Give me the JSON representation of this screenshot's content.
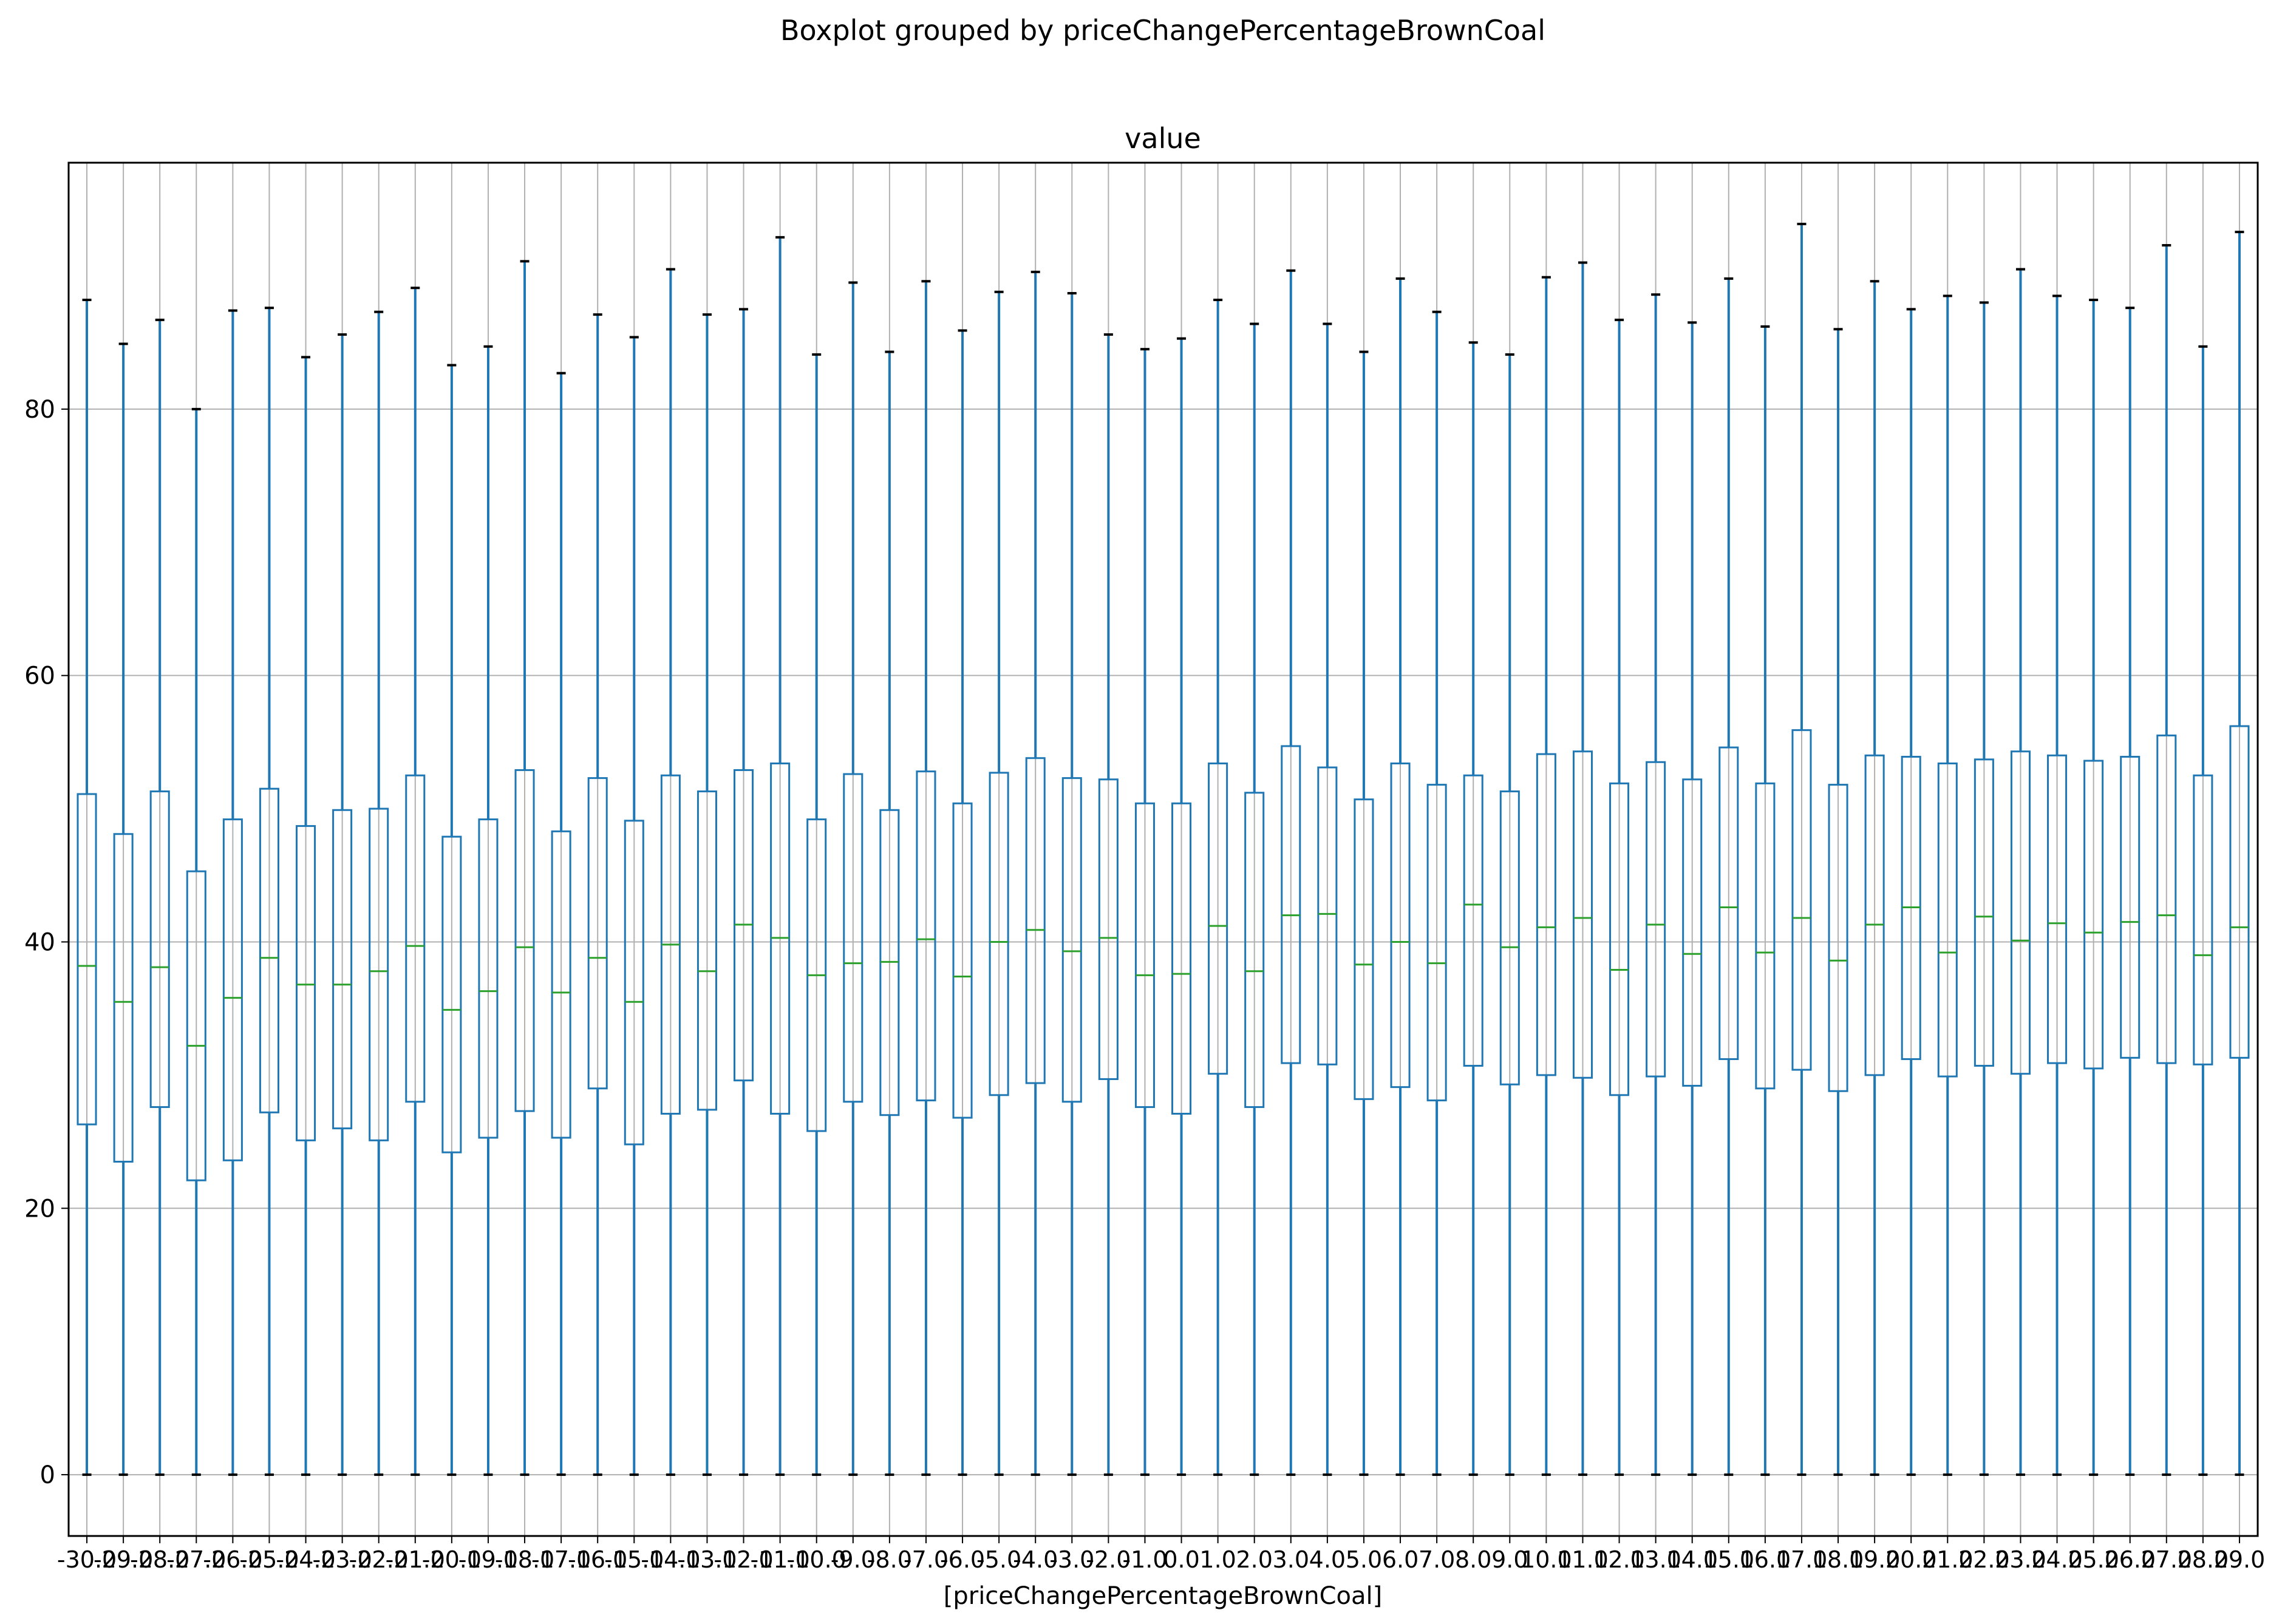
{
  "chart_data": {
    "type": "boxplot",
    "suptitle": "Boxplot grouped by priceChangePercentageBrownCoal",
    "title": "value",
    "xlabel": "[priceChangePercentageBrownCoal]",
    "ylabel": "",
    "ylim": [
      -4.6,
      98.5
    ],
    "yticks": [
      0,
      20,
      40,
      60,
      80
    ],
    "grid": true,
    "colors": {
      "box": "#1f77b4",
      "median": "#2ca02c",
      "cap": "#000000",
      "grid": "#b0b0b0"
    },
    "categories": [
      "-30.0",
      "-29.0",
      "-28.0",
      "-27.0",
      "-26.0",
      "-25.0",
      "-24.0",
      "-23.0",
      "-22.0",
      "-21.0",
      "-20.0",
      "-19.0",
      "-18.0",
      "-17.0",
      "-16.0",
      "-15.0",
      "-14.0",
      "-13.0",
      "-12.0",
      "-11.0",
      "-10.0",
      "-9.0",
      "-8.0",
      "-7.0",
      "-6.0",
      "-5.0",
      "-4.0",
      "-3.0",
      "-2.0",
      "-1.0",
      "0.0",
      "1.0",
      "2.0",
      "3.0",
      "4.0",
      "5.0",
      "6.0",
      "7.0",
      "8.0",
      "9.0",
      "10.0",
      "11.0",
      "12.0",
      "13.0",
      "14.0",
      "15.0",
      "16.0",
      "17.0",
      "18.0",
      "19.0",
      "20.0",
      "21.0",
      "22.0",
      "23.0",
      "24.0",
      "25.0",
      "26.0",
      "27.0",
      "28.0",
      "29.0"
    ],
    "whisker_low": [
      0,
      0,
      0,
      0,
      0,
      0,
      0,
      0,
      0,
      0,
      0,
      0,
      0,
      0,
      0,
      0,
      0,
      0,
      0,
      0,
      0,
      0,
      0,
      0,
      0,
      0,
      0,
      0,
      0,
      0,
      0,
      0,
      0,
      0,
      0,
      0,
      0,
      0,
      0,
      0,
      0,
      0,
      0,
      0,
      0,
      0,
      0,
      0,
      0,
      0,
      0,
      0,
      0,
      0,
      0,
      0,
      0,
      0,
      0,
      0
    ],
    "q1": [
      26.3,
      23.5,
      27.6,
      22.1,
      23.6,
      27.2,
      25.1,
      26.0,
      25.1,
      28.0,
      24.2,
      25.3,
      27.3,
      25.3,
      29.0,
      24.8,
      27.1,
      27.4,
      29.6,
      27.1,
      25.8,
      28.0,
      27.0,
      28.1,
      26.8,
      28.5,
      29.4,
      28.0,
      29.7,
      27.6,
      27.1,
      30.1,
      27.6,
      30.9,
      30.8,
      28.2,
      29.1,
      28.1,
      30.7,
      29.3,
      30.0,
      29.8,
      28.5,
      29.9,
      29.2,
      31.2,
      29.0,
      30.4,
      28.8,
      30.0,
      31.2,
      29.9,
      30.7,
      30.1,
      30.9,
      30.5,
      31.3,
      30.9,
      30.8,
      31.3
    ],
    "median": [
      38.2,
      35.5,
      38.1,
      32.2,
      35.8,
      38.8,
      36.8,
      36.8,
      37.8,
      39.7,
      34.9,
      36.3,
      39.6,
      36.2,
      38.8,
      35.5,
      39.8,
      37.8,
      41.3,
      40.3,
      37.5,
      38.4,
      38.5,
      40.2,
      37.4,
      40.0,
      40.9,
      39.3,
      40.3,
      37.5,
      37.6,
      41.2,
      37.8,
      42.0,
      42.1,
      38.3,
      40.0,
      38.4,
      42.8,
      39.6,
      41.1,
      41.8,
      37.9,
      41.3,
      39.1,
      42.6,
      39.2,
      41.8,
      38.6,
      41.3,
      42.6,
      39.2,
      41.9,
      40.1,
      41.4,
      40.7,
      41.5,
      42.0,
      39.0,
      41.1
    ],
    "q3": [
      51.1,
      48.1,
      51.3,
      45.3,
      49.2,
      51.5,
      48.7,
      49.9,
      50.0,
      52.5,
      47.9,
      49.2,
      52.9,
      48.3,
      52.3,
      49.1,
      52.5,
      51.3,
      52.9,
      53.4,
      49.2,
      52.6,
      49.9,
      52.8,
      50.4,
      52.7,
      53.8,
      52.3,
      52.2,
      50.4,
      50.4,
      53.4,
      51.2,
      54.7,
      53.1,
      50.7,
      53.4,
      51.8,
      52.5,
      51.3,
      54.1,
      54.3,
      51.9,
      53.5,
      52.2,
      54.6,
      51.9,
      55.9,
      51.8,
      54.0,
      53.9,
      53.4,
      53.7,
      54.3,
      54.0,
      53.6,
      53.9,
      55.5,
      52.5,
      56.2
    ],
    "whisker_high": [
      88.2,
      84.9,
      86.7,
      80.0,
      87.4,
      87.6,
      83.9,
      85.6,
      87.3,
      89.1,
      83.3,
      84.7,
      91.1,
      82.7,
      87.1,
      85.4,
      90.5,
      87.1,
      87.5,
      92.9,
      84.1,
      89.5,
      84.3,
      89.6,
      85.9,
      88.8,
      90.3,
      88.7,
      85.6,
      84.5,
      85.3,
      88.2,
      86.4,
      90.4,
      86.4,
      84.3,
      89.8,
      87.3,
      85.0,
      84.1,
      89.9,
      91.0,
      86.7,
      88.6,
      86.5,
      89.8,
      86.2,
      93.9,
      86.0,
      89.6,
      87.5,
      88.5,
      88.0,
      90.5,
      88.5,
      88.2,
      87.6,
      92.3,
      84.7,
      93.3
    ]
  }
}
